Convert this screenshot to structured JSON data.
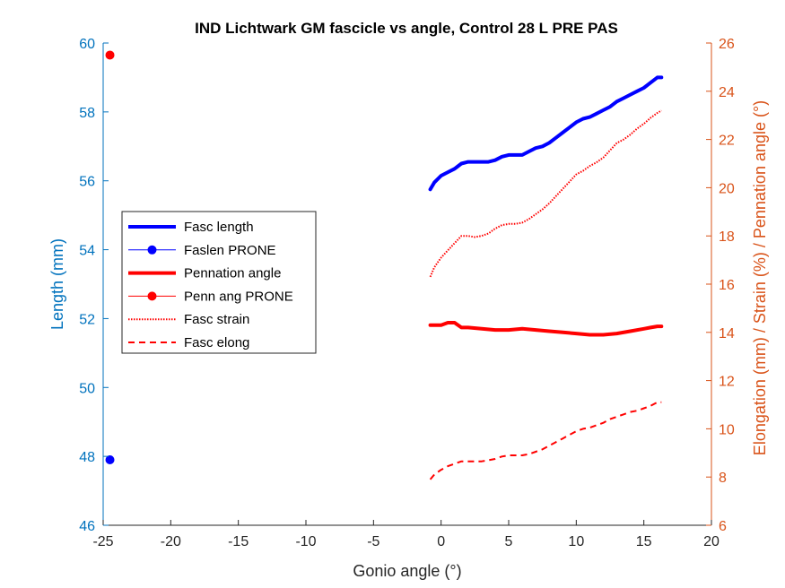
{
  "chart_data": {
    "type": "line",
    "title": "IND Lichtwark GM fascicle vs angle, Control 28 L PRE PAS",
    "xlabel": "Gonio angle (°)",
    "ylabel_left": "Length (mm)",
    "ylabel_right": "Elongation (mm) / Strain (%) / Pennation angle (°)",
    "xlim": [
      -25,
      20
    ],
    "ylim_left": [
      46,
      60
    ],
    "ylim_right": [
      6,
      26
    ],
    "xticks": [
      "-25",
      "-20",
      "-15",
      "-10",
      "-5",
      "0",
      "5",
      "10",
      "15",
      "20"
    ],
    "yticks_left": [
      "46",
      "48",
      "50",
      "52",
      "54",
      "56",
      "58",
      "60"
    ],
    "yticks_right": [
      "6",
      "8",
      "10",
      "12",
      "14",
      "16",
      "18",
      "20",
      "22",
      "24",
      "26"
    ],
    "grid": false,
    "legend_position": "center-left",
    "colors": {
      "left_axis": "#0072BD",
      "right_axis": "#D95319",
      "blue": "#0000FF",
      "red": "#FF0000"
    },
    "series": [
      {
        "name": "Fasc length",
        "axis": "left",
        "style": "solid-thick",
        "color": "#0000FF",
        "x": [
          -0.8,
          -0.5,
          0,
          0.5,
          1,
          1.5,
          2,
          2.5,
          3,
          3.5,
          4,
          4.5,
          5,
          5.5,
          6,
          6.5,
          7,
          7.5,
          8,
          8.5,
          9,
          9.5,
          10,
          10.5,
          11,
          11.5,
          12,
          12.5,
          13,
          13.5,
          14,
          14.5,
          15,
          15.5,
          16,
          16.3
        ],
        "y": [
          55.75,
          55.95,
          56.15,
          56.25,
          56.35,
          56.5,
          56.55,
          56.55,
          56.55,
          56.55,
          56.6,
          56.7,
          56.75,
          56.75,
          56.75,
          56.85,
          56.95,
          57.0,
          57.1,
          57.25,
          57.4,
          57.55,
          57.7,
          57.8,
          57.85,
          57.95,
          58.05,
          58.15,
          58.3,
          58.4,
          58.5,
          58.6,
          58.7,
          58.85,
          59.0,
          59.0
        ]
      },
      {
        "name": "Faslen PRONE",
        "axis": "left",
        "style": "marker",
        "color": "#0000FF",
        "x": [
          -24.5
        ],
        "y": [
          47.9
        ]
      },
      {
        "name": "Pennation angle",
        "axis": "right",
        "style": "solid-thick",
        "color": "#FF0000",
        "x": [
          -0.8,
          0,
          0.5,
          1,
          1.5,
          2,
          3,
          4,
          5,
          6,
          7,
          8,
          9,
          10,
          11,
          12,
          13,
          14,
          15,
          15.5,
          16,
          16.3
        ],
        "y": [
          14.3,
          14.3,
          14.4,
          14.4,
          14.2,
          14.2,
          14.15,
          14.1,
          14.1,
          14.15,
          14.1,
          14.05,
          14.0,
          13.95,
          13.9,
          13.9,
          13.95,
          14.05,
          14.15,
          14.2,
          14.25,
          14.25
        ]
      },
      {
        "name": "Penn ang PRONE",
        "axis": "right",
        "style": "marker",
        "color": "#FF0000",
        "x": [
          -24.5
        ],
        "y": [
          25.5
        ]
      },
      {
        "name": "Fasc strain",
        "axis": "right",
        "style": "dotted",
        "color": "#FF0000",
        "x": [
          -0.8,
          -0.5,
          0,
          0.5,
          1,
          1.5,
          2,
          2.5,
          3,
          3.5,
          4,
          4.5,
          5,
          5.5,
          6,
          6.5,
          7,
          7.5,
          8,
          8.5,
          9,
          9.5,
          10,
          10.5,
          11,
          11.5,
          12,
          12.5,
          13,
          13.5,
          14,
          14.5,
          15,
          15.5,
          16,
          16.3
        ],
        "y": [
          16.3,
          16.7,
          17.1,
          17.4,
          17.7,
          18.0,
          18.0,
          17.95,
          18.0,
          18.1,
          18.3,
          18.45,
          18.5,
          18.5,
          18.55,
          18.7,
          18.9,
          19.1,
          19.35,
          19.65,
          19.95,
          20.25,
          20.55,
          20.7,
          20.9,
          21.05,
          21.25,
          21.55,
          21.85,
          22.0,
          22.2,
          22.45,
          22.65,
          22.9,
          23.1,
          23.2
        ]
      },
      {
        "name": "Fasc elong",
        "axis": "right",
        "style": "dashed",
        "color": "#FF0000",
        "x": [
          -0.8,
          -0.5,
          0,
          0.5,
          1,
          1.5,
          2,
          2.5,
          3,
          3.5,
          4,
          4.5,
          5,
          5.5,
          6,
          6.5,
          7,
          7.5,
          8,
          8.5,
          9,
          9.5,
          10,
          10.5,
          11,
          11.5,
          12,
          12.5,
          13,
          13.5,
          14,
          14.5,
          15,
          15.5,
          16,
          16.3
        ],
        "y": [
          7.9,
          8.1,
          8.3,
          8.45,
          8.55,
          8.65,
          8.65,
          8.65,
          8.65,
          8.7,
          8.75,
          8.85,
          8.9,
          8.9,
          8.9,
          8.95,
          9.05,
          9.15,
          9.3,
          9.45,
          9.6,
          9.75,
          9.9,
          10.0,
          10.05,
          10.15,
          10.25,
          10.4,
          10.5,
          10.6,
          10.7,
          10.75,
          10.85,
          10.95,
          11.1,
          11.1
        ]
      }
    ]
  }
}
